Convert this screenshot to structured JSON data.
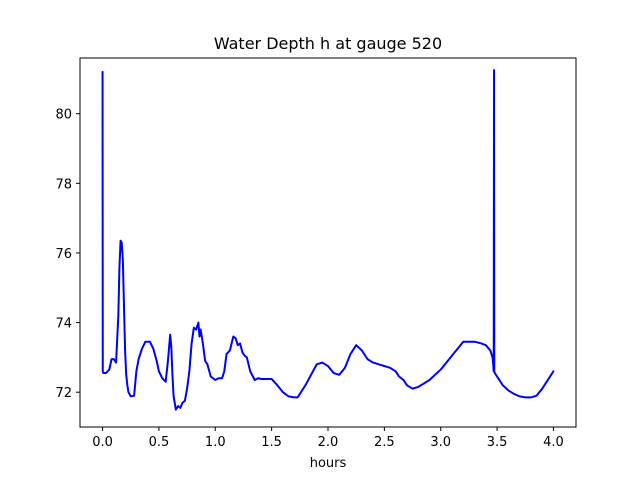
{
  "chart_data": {
    "type": "line",
    "title": "Water Depth h at gauge 520",
    "xlabel": "hours",
    "ylabel": "",
    "xlim": [
      -0.2,
      4.2
    ],
    "ylim": [
      71.0,
      81.6
    ],
    "xticks": [
      0.0,
      0.5,
      1.0,
      1.5,
      2.0,
      2.5,
      3.0,
      3.5,
      4.0
    ],
    "xtick_labels": [
      "0.0",
      "0.5",
      "1.0",
      "1.5",
      "2.0",
      "2.5",
      "3.0",
      "3.5",
      "4.0"
    ],
    "yticks": [
      72,
      74,
      76,
      78,
      80
    ],
    "ytick_labels": [
      "72",
      "74",
      "76",
      "78",
      "80"
    ],
    "grid": false,
    "colors": {
      "line": "#0000ff",
      "axes": "#000000",
      "background": "#ffffff"
    },
    "series": [
      {
        "x": [
          0.0,
          0.002,
          0.006,
          0.01,
          0.03,
          0.06,
          0.08,
          0.1,
          0.12,
          0.14,
          0.15,
          0.16,
          0.17,
          0.18,
          0.19,
          0.2,
          0.21,
          0.22,
          0.23,
          0.25,
          0.28,
          0.3,
          0.32,
          0.35,
          0.38,
          0.42,
          0.45,
          0.48,
          0.5,
          0.53,
          0.56,
          0.58,
          0.6,
          0.61,
          0.62,
          0.63,
          0.65,
          0.67,
          0.69,
          0.71,
          0.73,
          0.75,
          0.77,
          0.79,
          0.81,
          0.83,
          0.85,
          0.86,
          0.87,
          0.89,
          0.91,
          0.93,
          0.96,
          1.0,
          1.03,
          1.06,
          1.08,
          1.1,
          1.13,
          1.16,
          1.18,
          1.2,
          1.22,
          1.24,
          1.26,
          1.28,
          1.31,
          1.35,
          1.38,
          1.41,
          1.45,
          1.5,
          1.55,
          1.6,
          1.65,
          1.7,
          1.73,
          1.76,
          1.8,
          1.85,
          1.9,
          1.95,
          2.0,
          2.05,
          2.1,
          2.15,
          2.2,
          2.25,
          2.3,
          2.35,
          2.4,
          2.45,
          2.5,
          2.55,
          2.6,
          2.63,
          2.67,
          2.7,
          2.75,
          2.8,
          2.85,
          2.9,
          2.95,
          3.0,
          3.05,
          3.1,
          3.2,
          3.3,
          3.36,
          3.4,
          3.44,
          3.46,
          3.465,
          3.47,
          3.473,
          3.475,
          3.48,
          3.5,
          3.55,
          3.6,
          3.65,
          3.7,
          3.75,
          3.8,
          3.85,
          3.9,
          3.95,
          4.0
        ],
        "y": [
          81.2,
          72.6,
          72.55,
          72.55,
          72.55,
          72.65,
          72.95,
          72.95,
          72.85,
          74.2,
          75.6,
          76.35,
          76.3,
          75.8,
          74.5,
          73.2,
          72.5,
          72.2,
          72.0,
          71.88,
          71.9,
          72.6,
          72.95,
          73.25,
          73.45,
          73.45,
          73.25,
          72.9,
          72.6,
          72.4,
          72.3,
          72.9,
          73.65,
          73.3,
          72.5,
          71.9,
          71.5,
          71.6,
          71.55,
          71.7,
          71.75,
          72.1,
          72.6,
          73.4,
          73.85,
          73.8,
          74.0,
          73.6,
          73.8,
          73.4,
          72.9,
          72.8,
          72.45,
          72.35,
          72.4,
          72.4,
          72.6,
          73.1,
          73.2,
          73.6,
          73.55,
          73.35,
          73.4,
          73.15,
          73.05,
          73.0,
          72.6,
          72.35,
          72.4,
          72.38,
          72.38,
          72.38,
          72.2,
          72.0,
          71.88,
          71.85,
          71.85,
          72.0,
          72.2,
          72.5,
          72.8,
          72.85,
          72.75,
          72.55,
          72.5,
          72.7,
          73.1,
          73.35,
          73.2,
          72.95,
          72.85,
          72.8,
          72.75,
          72.7,
          72.6,
          72.45,
          72.35,
          72.2,
          72.1,
          72.15,
          72.25,
          72.35,
          72.5,
          72.65,
          72.85,
          73.05,
          73.45,
          73.45,
          73.4,
          73.35,
          73.2,
          73.0,
          72.8,
          72.6,
          81.25,
          72.6,
          72.55,
          72.45,
          72.2,
          72.05,
          71.95,
          71.88,
          71.85,
          71.85,
          71.9,
          72.1,
          72.35,
          72.6
        ]
      }
    ]
  }
}
